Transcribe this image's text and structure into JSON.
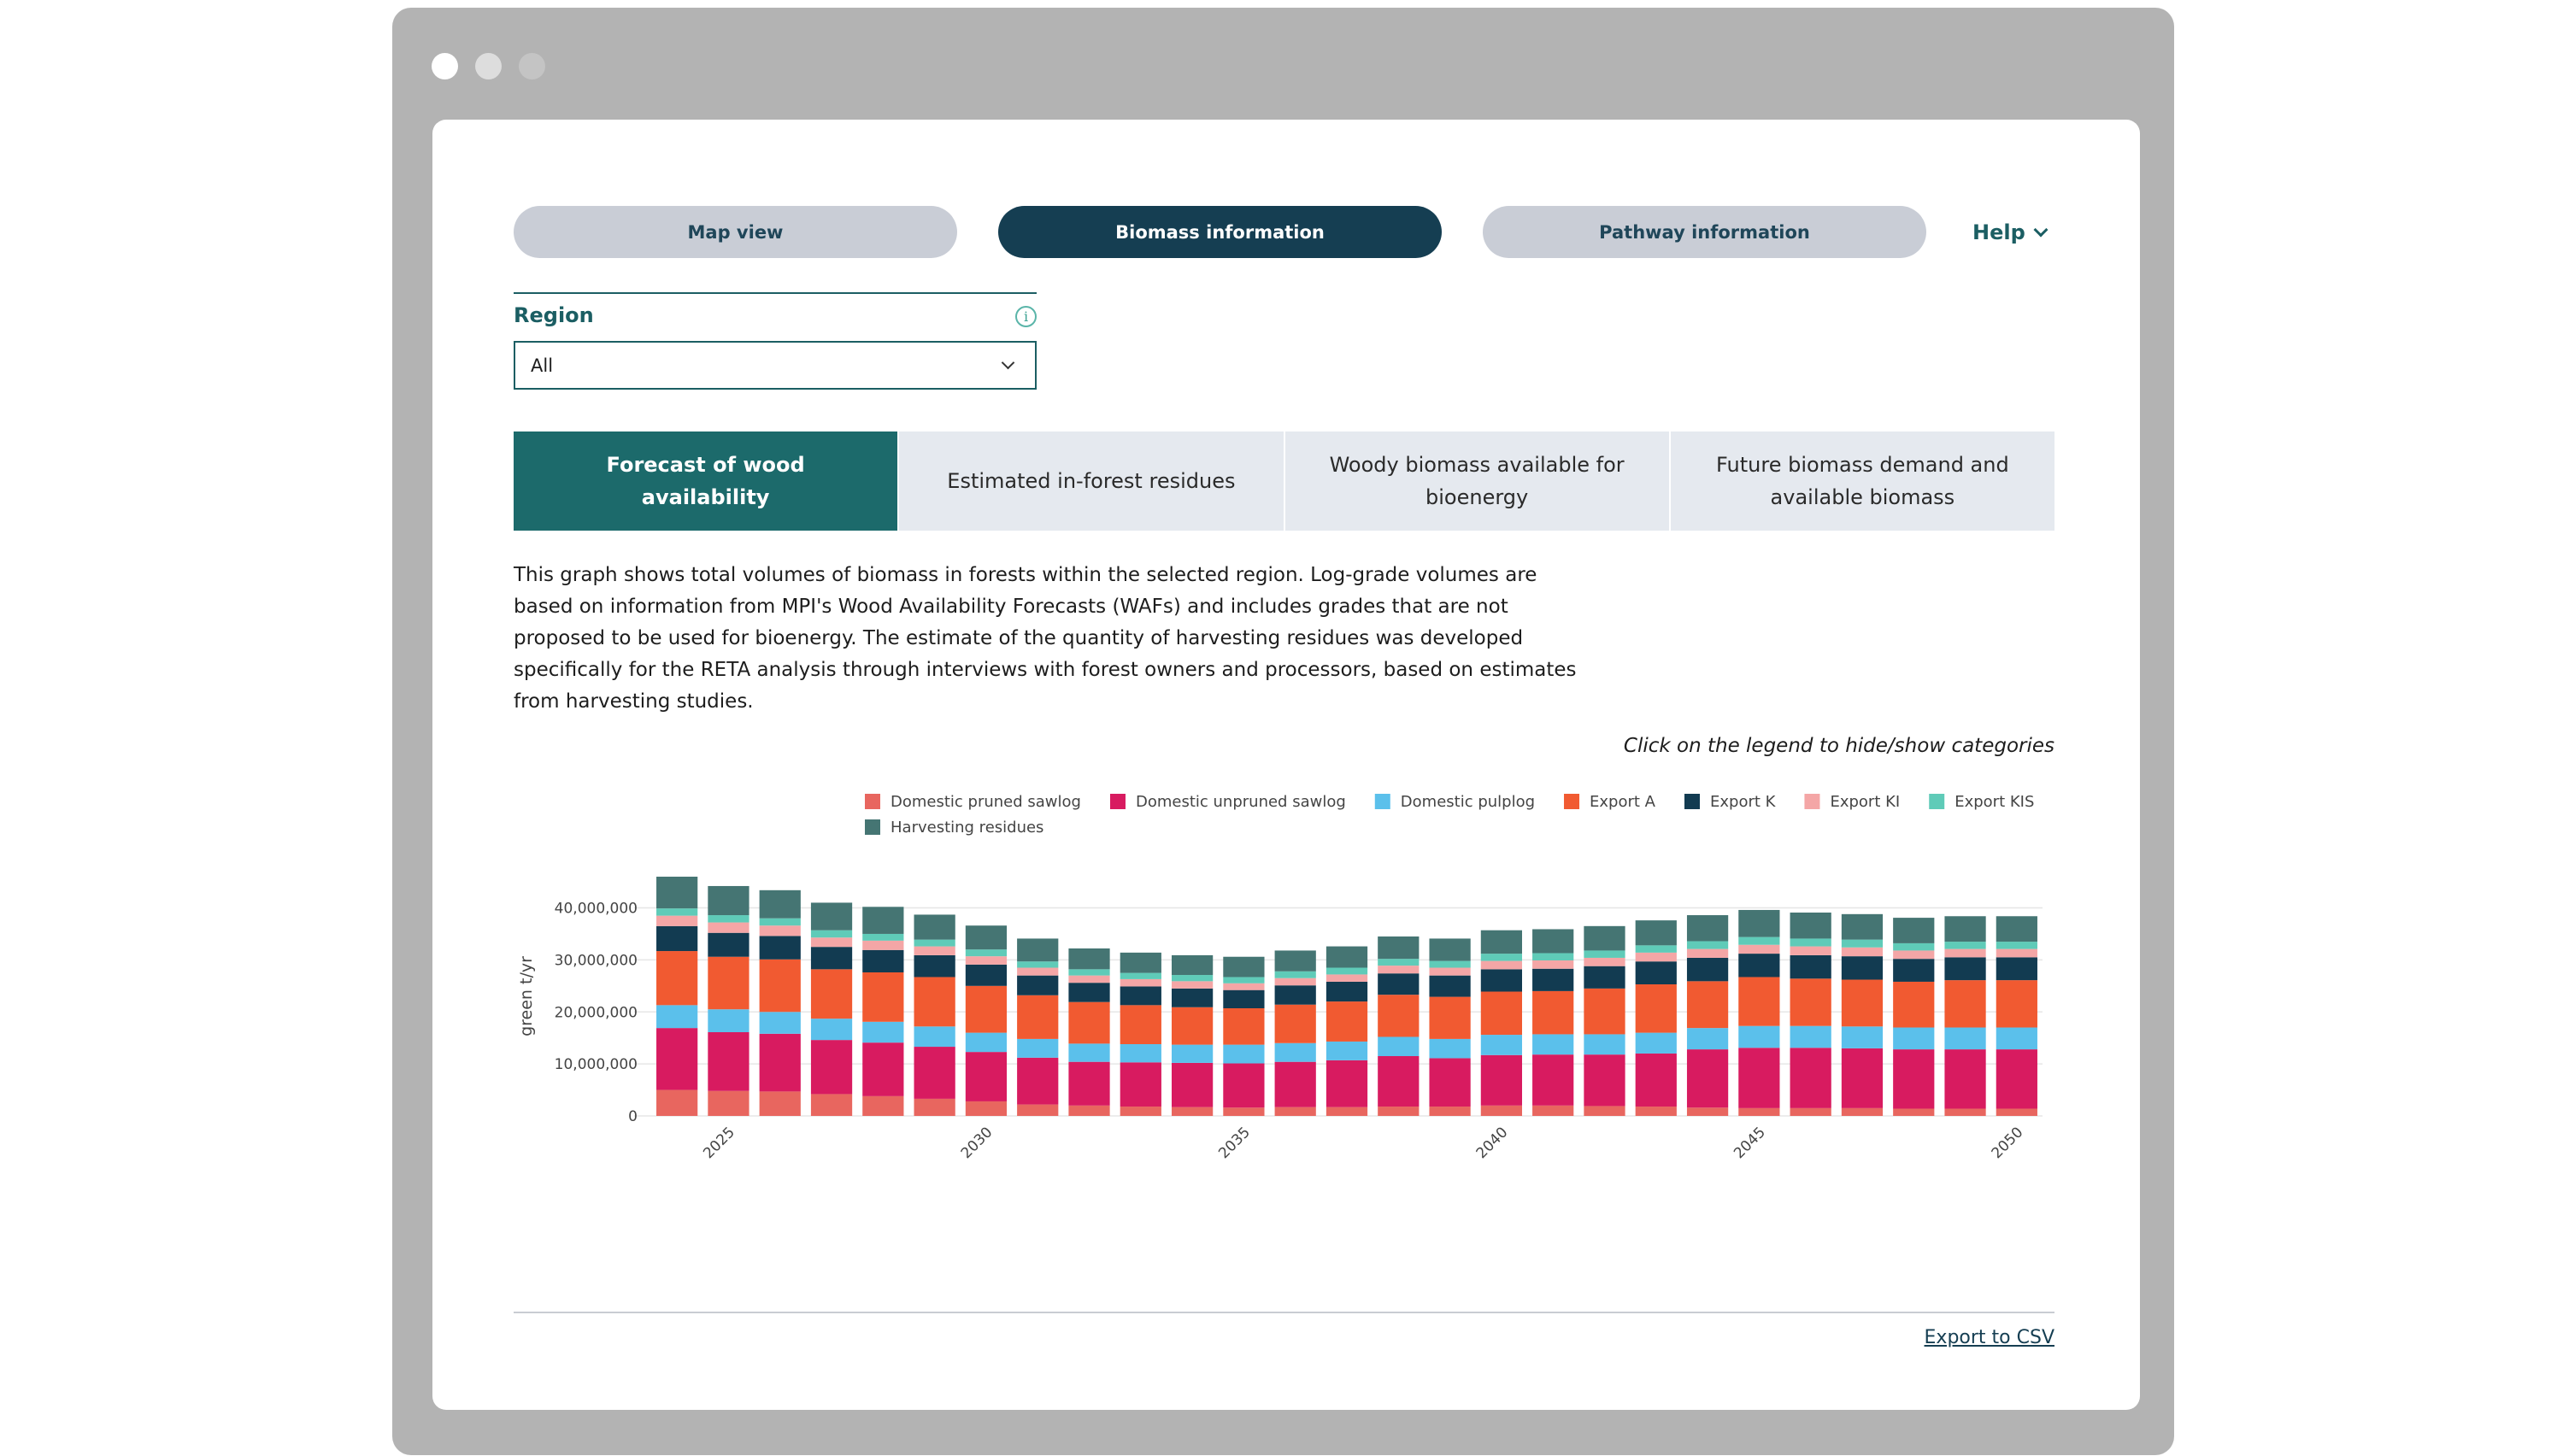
{
  "nav": {
    "tabs": [
      {
        "label": "Map view",
        "active": false
      },
      {
        "label": "Biomass information",
        "active": true
      },
      {
        "label": "Pathway information",
        "active": false
      }
    ],
    "help_label": "Help"
  },
  "region": {
    "label": "Region",
    "selected": "All"
  },
  "content_tabs": [
    {
      "label": "Forecast of wood availability",
      "active": true
    },
    {
      "label": "Estimated in-forest residues",
      "active": false
    },
    {
      "label": "Woody biomass available for bioenergy",
      "active": false
    },
    {
      "label": "Future biomass demand and available biomass",
      "active": false
    }
  ],
  "description": "This graph shows total volumes of biomass in forests within the selected region. Log-grade volumes are based on information from MPI's Wood Availability Forecasts (WAFs) and includes grades that are not proposed to be used for bioenergy. The estimate of the quantity of harvesting residues was developed specifically for the RETA analysis through interviews with forest owners and processors, based on estimates from harvesting studies.",
  "legend_hint": "Click on the legend to hide/show categories",
  "export_label": "Export to CSV",
  "chart_data": {
    "type": "bar",
    "stacked": true,
    "ylabel": "green t/yr",
    "ylim": [
      0,
      46000000
    ],
    "yticks": [
      {
        "value": 0,
        "label": "0"
      },
      {
        "value": 10000000,
        "label": "10,000,000"
      },
      {
        "value": 20000000,
        "label": "20,000,000"
      },
      {
        "value": 30000000,
        "label": "30,000,000"
      },
      {
        "value": 40000000,
        "label": "40,000,000"
      }
    ],
    "xticks": [
      {
        "value": 2025,
        "label": "2025"
      },
      {
        "value": 2030,
        "label": "2030"
      },
      {
        "value": 2035,
        "label": "2035"
      },
      {
        "value": 2040,
        "label": "2040"
      },
      {
        "value": 2045,
        "label": "2045"
      },
      {
        "value": 2050,
        "label": "2050"
      }
    ],
    "grid": "horizontal",
    "legend_position": "top",
    "x": [
      2024,
      2025,
      2026,
      2027,
      2028,
      2029,
      2030,
      2031,
      2032,
      2033,
      2034,
      2035,
      2036,
      2037,
      2038,
      2039,
      2040,
      2041,
      2042,
      2043,
      2044,
      2045,
      2046,
      2047,
      2048,
      2049,
      2050
    ],
    "series": [
      {
        "name": "Domestic pruned sawlog",
        "color": "#e8665f",
        "values": [
          5000000,
          4800000,
          4700000,
          4200000,
          3800000,
          3300000,
          2800000,
          2200000,
          2000000,
          1800000,
          1700000,
          1600000,
          1700000,
          1700000,
          1800000,
          1800000,
          2000000,
          2000000,
          1900000,
          1800000,
          1600000,
          1500000,
          1500000,
          1500000,
          1400000,
          1400000,
          1400000
        ]
      },
      {
        "name": "Domestic unpruned sawlog",
        "color": "#d81b60",
        "values": [
          11900000,
          11300000,
          11100000,
          10400000,
          10300000,
          10000000,
          9500000,
          9000000,
          8400000,
          8500000,
          8500000,
          8500000,
          8700000,
          9000000,
          9700000,
          9300000,
          9700000,
          9800000,
          9900000,
          10200000,
          11200000,
          11600000,
          11600000,
          11500000,
          11400000,
          11400000,
          11400000
        ]
      },
      {
        "name": "Domestic pulplog",
        "color": "#5bc0eb",
        "values": [
          4400000,
          4400000,
          4200000,
          4100000,
          4000000,
          3900000,
          3700000,
          3600000,
          3500000,
          3500000,
          3500000,
          3600000,
          3600000,
          3600000,
          3700000,
          3700000,
          3900000,
          3900000,
          3900000,
          4000000,
          4100000,
          4200000,
          4200000,
          4200000,
          4200000,
          4200000,
          4200000
        ]
      },
      {
        "name": "Export A",
        "color": "#f15a31",
        "values": [
          10400000,
          10100000,
          10100000,
          9500000,
          9500000,
          9500000,
          9000000,
          8400000,
          8000000,
          7500000,
          7200000,
          7000000,
          7400000,
          7700000,
          8100000,
          8100000,
          8300000,
          8300000,
          8800000,
          9300000,
          9000000,
          9400000,
          9100000,
          9000000,
          8800000,
          9100000,
          9100000
        ]
      },
      {
        "name": "Export K",
        "color": "#123b51",
        "values": [
          4800000,
          4600000,
          4500000,
          4300000,
          4300000,
          4200000,
          4100000,
          3800000,
          3700000,
          3600000,
          3600000,
          3500000,
          3700000,
          3800000,
          4100000,
          4100000,
          4300000,
          4300000,
          4300000,
          4400000,
          4500000,
          4500000,
          4500000,
          4500000,
          4400000,
          4400000,
          4400000
        ]
      },
      {
        "name": "Export KI",
        "color": "#f4a6a6",
        "values": [
          2000000,
          2000000,
          2000000,
          1800000,
          1800000,
          1700000,
          1600000,
          1500000,
          1400000,
          1400000,
          1400000,
          1300000,
          1400000,
          1400000,
          1500000,
          1500000,
          1600000,
          1600000,
          1600000,
          1700000,
          1700000,
          1700000,
          1700000,
          1700000,
          1600000,
          1600000,
          1600000
        ]
      },
      {
        "name": "Export KIS",
        "color": "#5fcbb8",
        "values": [
          1400000,
          1400000,
          1400000,
          1400000,
          1300000,
          1300000,
          1300000,
          1200000,
          1200000,
          1200000,
          1200000,
          1200000,
          1300000,
          1300000,
          1300000,
          1300000,
          1400000,
          1400000,
          1400000,
          1400000,
          1500000,
          1500000,
          1500000,
          1500000,
          1400000,
          1400000,
          1400000
        ]
      },
      {
        "name": "Harvesting residues",
        "color": "#457573",
        "values": [
          6100000,
          5600000,
          5400000,
          5300000,
          5200000,
          4800000,
          4600000,
          4400000,
          4000000,
          3900000,
          3800000,
          3900000,
          4000000,
          4100000,
          4300000,
          4300000,
          4500000,
          4600000,
          4700000,
          4800000,
          5000000,
          5200000,
          5000000,
          4900000,
          4900000,
          4900000,
          4900000
        ]
      }
    ]
  }
}
